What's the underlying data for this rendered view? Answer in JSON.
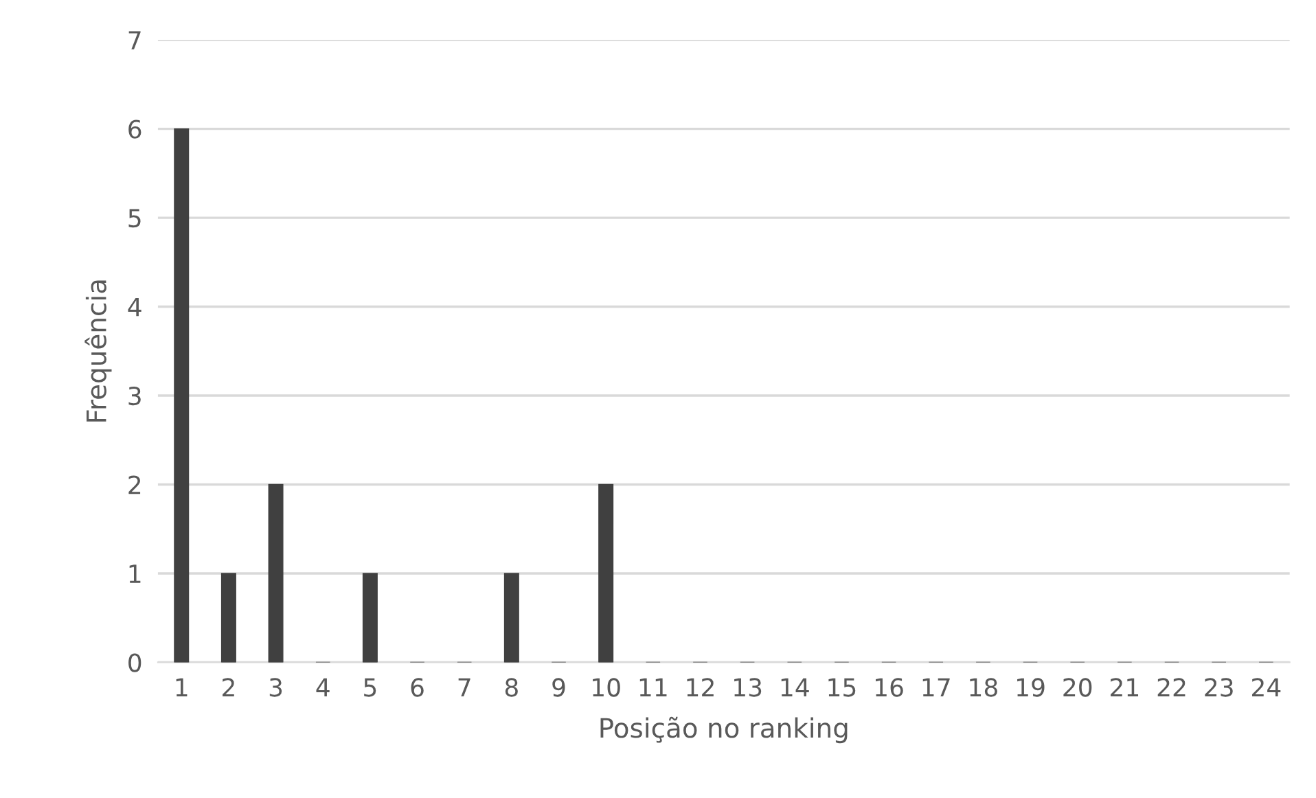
{
  "chart_data": {
    "type": "bar",
    "xlabel": "Posição no ranking",
    "ylabel": "Frequência",
    "categories": [
      "1",
      "2",
      "3",
      "4",
      "5",
      "6",
      "7",
      "8",
      "9",
      "10",
      "11",
      "12",
      "13",
      "14",
      "15",
      "16",
      "17",
      "18",
      "19",
      "20",
      "21",
      "22",
      "23",
      "24"
    ],
    "values": [
      6,
      1,
      2,
      0,
      1,
      0,
      0,
      1,
      0,
      2,
      0,
      0,
      0,
      0,
      0,
      0,
      0,
      0,
      0,
      0,
      0,
      0,
      0,
      0
    ],
    "color": "#404040",
    "ylim": [
      0,
      7
    ],
    "yticks": [
      0,
      1,
      2,
      3,
      4,
      5,
      6,
      7
    ],
    "grid": "y",
    "legend": false
  }
}
